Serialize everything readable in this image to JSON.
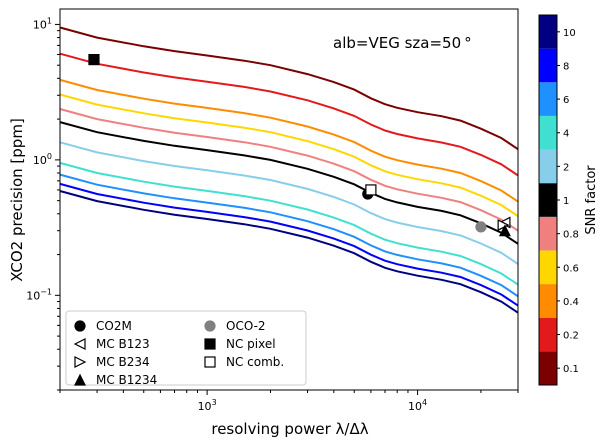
{
  "chart_data": {
    "type": "line",
    "annotation": "alb=VEG sza=50$^\\circ$",
    "annotation_text": "alb=VEG sza=50 °",
    "xlabel": "resolving power λ/Δλ",
    "ylabel": "XCO2 precision [ppm]",
    "xscale": "log",
    "yscale": "log",
    "xlim": [
      200,
      30000
    ],
    "ylim": [
      0.02,
      13
    ],
    "x_ticks": [
      {
        "value": 1000,
        "base": "10",
        "exp": "3"
      },
      {
        "value": 10000,
        "base": "10",
        "exp": "4"
      }
    ],
    "y_ticks": [
      {
        "value": 0.1,
        "base": "10",
        "exp": "−1"
      },
      {
        "value": 1,
        "base": "10",
        "exp": "0"
      },
      {
        "value": 10,
        "base": "10",
        "exp": "1"
      }
    ],
    "grid": false,
    "colorbar": {
      "label": "SNR factor",
      "levels": [
        {
          "label": "0.1",
          "color": "#7b0000"
        },
        {
          "label": "0.2",
          "color": "#e31a1c"
        },
        {
          "label": "0.4",
          "color": "#ff8c00"
        },
        {
          "label": "0.6",
          "color": "#ffd700"
        },
        {
          "label": "0.8",
          "color": "#f08080"
        },
        {
          "label": "1",
          "color": "#000000"
        },
        {
          "label": "2",
          "color": "#87ceeb"
        },
        {
          "label": "4",
          "color": "#40e0d0"
        },
        {
          "label": "6",
          "color": "#1e90ff"
        },
        {
          "label": "8",
          "color": "#0000ff"
        },
        {
          "label": "10",
          "color": "#000080"
        }
      ]
    },
    "curves_x": [
      200,
      300,
      500,
      700,
      1000,
      1500,
      2000,
      3000,
      4000,
      5000,
      6000,
      7000,
      8000,
      10000,
      13000,
      16000,
      20000,
      25000,
      30000
    ],
    "curves_base": [
      1.9,
      1.6,
      1.38,
      1.27,
      1.18,
      1.08,
      1.0,
      0.86,
      0.75,
      0.66,
      0.57,
      0.515,
      0.485,
      0.45,
      0.42,
      0.39,
      0.34,
      0.29,
      0.24
    ],
    "curves_scale": [
      {
        "snr": "0.1",
        "factor": 5.0
      },
      {
        "snr": "0.2",
        "factor": 3.2
      },
      {
        "snr": "0.4",
        "factor": 2.05
      },
      {
        "snr": "0.6",
        "factor": 1.6
      },
      {
        "snr": "0.8",
        "factor": 1.25
      },
      {
        "snr": "1",
        "factor": 1.0
      },
      {
        "snr": "2",
        "factor": 0.71
      },
      {
        "snr": "4",
        "factor": 0.5
      },
      {
        "snr": "6",
        "factor": 0.41
      },
      {
        "snr": "8",
        "factor": 0.35
      },
      {
        "snr": "10",
        "factor": 0.31
      }
    ],
    "points": [
      {
        "name": "CO2M",
        "x": 5800,
        "y": 0.56,
        "marker": "circle",
        "fill": "#000000",
        "stroke": "#000000"
      },
      {
        "name": "MC B123",
        "x": 26000,
        "y": 0.345,
        "marker": "triangle-left",
        "fill": "#ffffff",
        "stroke": "#000000"
      },
      {
        "name": "MC B234",
        "x": 25500,
        "y": 0.33,
        "marker": "triangle-right",
        "fill": "#ffffff",
        "stroke": "#000000"
      },
      {
        "name": "MC B1234",
        "x": 26000,
        "y": 0.3,
        "marker": "triangle-up",
        "fill": "#000000",
        "stroke": "#000000"
      },
      {
        "name": "OCO-2",
        "x": 20000,
        "y": 0.32,
        "marker": "circle",
        "fill": "#808080",
        "stroke": "#808080"
      },
      {
        "name": "NC pixel",
        "x": 290,
        "y": 5.5,
        "marker": "square",
        "fill": "#000000",
        "stroke": "#000000"
      },
      {
        "name": "NC comb.",
        "x": 6000,
        "y": 0.6,
        "marker": "square",
        "fill": "#ffffff",
        "stroke": "#000000"
      }
    ],
    "legend": {
      "placement": "lower-left",
      "columns": [
        [
          "CO2M",
          "MC B123",
          "MC B234",
          "MC B1234"
        ],
        [
          "OCO-2",
          "NC pixel",
          "NC comb."
        ]
      ]
    }
  }
}
